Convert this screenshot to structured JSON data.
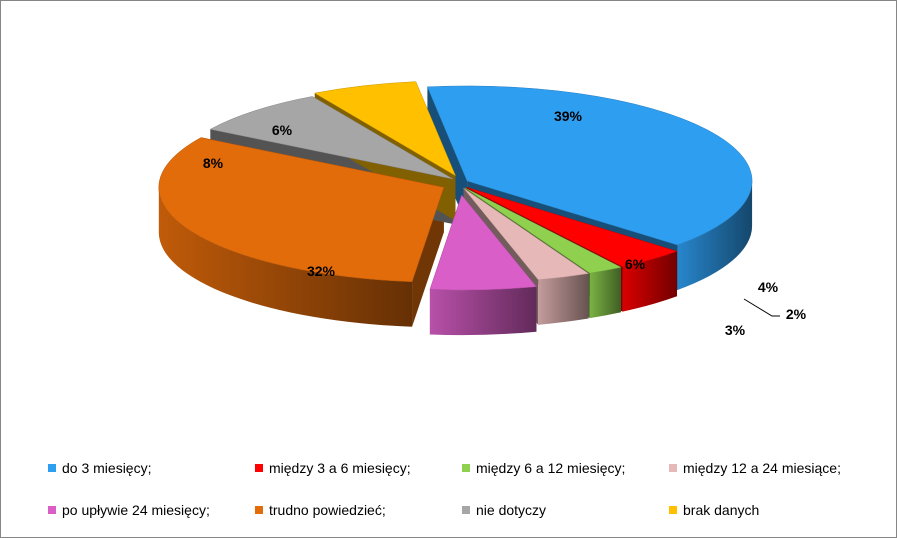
{
  "chart_data": {
    "type": "pie",
    "style": "3d-exploded",
    "legend_position": "bottom",
    "categories": [
      "do 3 miesięcy;",
      "między 3 a 6 miesięcy;",
      "między 6 a 12 miesięcy;",
      "między 12 a 24 miesiące;",
      "po upływie 24 miesięcy;",
      "trudno powiedzieć;",
      "nie dotyczy",
      "brak danych"
    ],
    "values": [
      39,
      4,
      2,
      3,
      6,
      32,
      8,
      6
    ],
    "labels": [
      "39%",
      "4%",
      "2%",
      "3%",
      "6%",
      "32%",
      "8%",
      "6%"
    ],
    "colors": [
      "#2e9ef0",
      "#ff0000",
      "#8fd14f",
      "#e6b8b7",
      "#d95ec7",
      "#e26b0a",
      "#a6a6a6",
      "#ffc000"
    ],
    "title": ""
  }
}
